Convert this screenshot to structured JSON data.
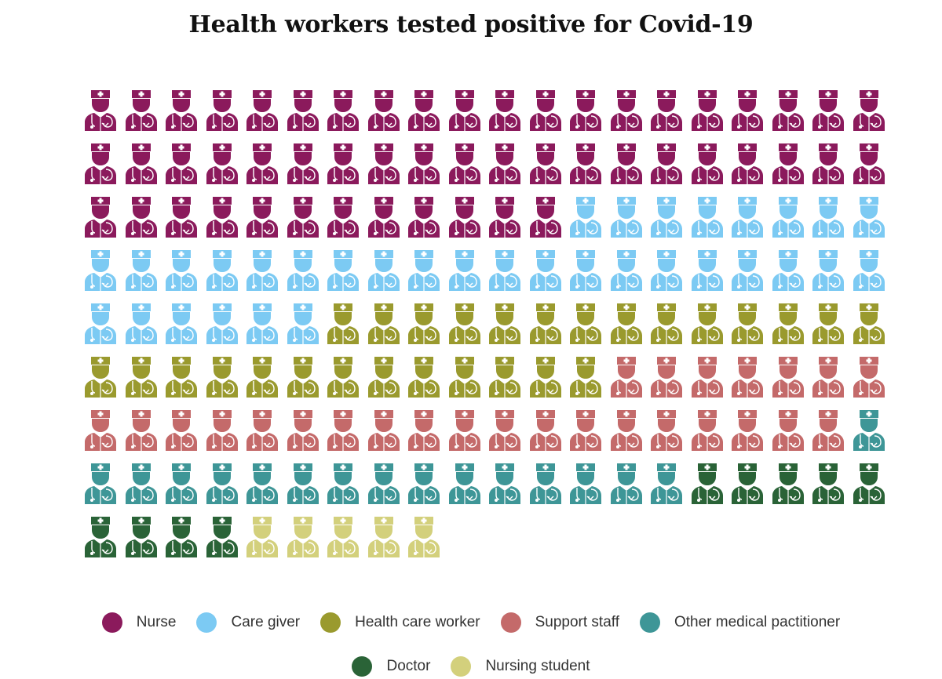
{
  "title": "Health workers tested positive for Covid-19",
  "icon_name": "health-worker-icon",
  "chart_data": {
    "type": "pictogram",
    "title": "Health workers tested positive for Covid-19",
    "icons_per_row": 20,
    "categories": [
      "Nurse",
      "Care giver",
      "Health care worker",
      "Support staff",
      "Other medical pactitioner",
      "Doctor",
      "Nursing student"
    ],
    "values": [
      52,
      34,
      27,
      26,
      16,
      9,
      5
    ],
    "colors": [
      "#8b1a5c",
      "#7ccaf3",
      "#9a9a2e",
      "#c46a6a",
      "#3e9697",
      "#2a6337",
      "#d3d07c"
    ],
    "legend_position": "bottom"
  }
}
